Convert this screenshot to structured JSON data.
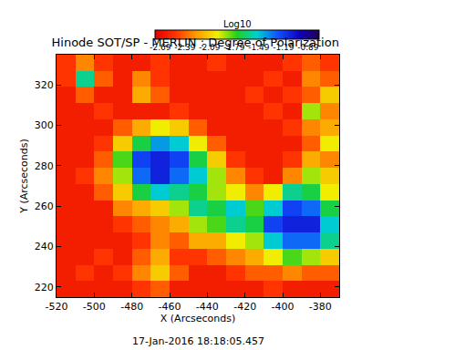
{
  "chart_data": {
    "type": "heatmap",
    "title": "Hinode SOT/SP - MERLIN : Degree of Polarization",
    "x_label": "X (Arcseconds)",
    "y_label": "Y (Arcseconds)",
    "annotations": [
      "17-Jan-2016 18:18:05.457"
    ],
    "xlim": [
      -520,
      -370
    ],
    "ylim": [
      215,
      335
    ],
    "xticks": [
      -520,
      -500,
      -480,
      -460,
      -440,
      -420,
      -400,
      -380
    ],
    "yticks": [
      220,
      240,
      260,
      280,
      300,
      320
    ],
    "x": [
      -515,
      -505,
      -495,
      -485,
      -475,
      -465,
      -455,
      -445,
      -435,
      -425,
      -415,
      -405,
      -395,
      -385,
      -375
    ],
    "y": [
      219,
      227,
      235,
      243,
      251,
      259,
      267,
      275,
      283,
      291,
      299,
      307,
      315,
      323,
      331
    ],
    "cells": [
      [
        -2.6,
        -2.6,
        -2.6,
        -2.6,
        -2.5,
        -2.4,
        -2.6,
        -2.6,
        -2.6,
        -2.6,
        -2.6,
        -2.5,
        -2.6,
        -2.6,
        -2.6
      ],
      [
        -2.6,
        -2.5,
        -2.6,
        -2.5,
        -2.3,
        -2.1,
        -2.4,
        -2.6,
        -2.6,
        -2.5,
        -2.4,
        -2.4,
        -2.3,
        -2.4,
        -2.4
      ],
      [
        -2.6,
        -2.6,
        -2.5,
        -2.6,
        -2.4,
        -2.2,
        -2.5,
        -2.5,
        -2.4,
        -2.3,
        -2.2,
        -2.0,
        -1.8,
        -1.9,
        -2.1
      ],
      [
        -2.6,
        -2.6,
        -2.6,
        -2.6,
        -2.5,
        -2.3,
        -2.4,
        -2.2,
        -2.2,
        -2.0,
        -1.9,
        -1.5,
        -1.3,
        -1.3,
        -1.6
      ],
      [
        -2.6,
        -2.6,
        -2.6,
        -2.5,
        -2.4,
        -2.3,
        -2.2,
        -1.9,
        -1.8,
        -1.6,
        -1.7,
        -1.2,
        -1.1,
        -1.1,
        -1.5
      ],
      [
        -2.6,
        -2.6,
        -2.6,
        -2.3,
        -2.2,
        -2.1,
        -1.9,
        -1.6,
        -1.7,
        -1.5,
        -1.8,
        -1.5,
        -1.2,
        -1.3,
        -1.7
      ],
      [
        -2.6,
        -2.6,
        -2.4,
        -2.1,
        -1.7,
        -1.5,
        -1.6,
        -1.7,
        -1.9,
        -2.0,
        -2.3,
        -2.0,
        -1.6,
        -1.7,
        -2.0
      ],
      [
        -2.6,
        -2.5,
        -2.3,
        -1.9,
        -1.3,
        -1.1,
        -1.3,
        -1.5,
        -1.9,
        -2.3,
        -2.5,
        -2.6,
        -2.3,
        -1.9,
        -2.1
      ],
      [
        -2.6,
        -2.6,
        -2.4,
        -1.8,
        -1.2,
        -1.1,
        -1.2,
        -1.7,
        -2.1,
        -2.5,
        -2.6,
        -2.6,
        -2.5,
        -2.2,
        -2.3
      ],
      [
        -2.6,
        -2.6,
        -2.5,
        -2.1,
        -1.7,
        -1.4,
        -1.5,
        -2.0,
        -2.4,
        -2.6,
        -2.6,
        -2.6,
        -2.6,
        -2.4,
        -2.0
      ],
      [
        -2.6,
        -2.6,
        -2.6,
        -2.4,
        -2.2,
        -2.0,
        -2.1,
        -2.4,
        -2.6,
        -2.6,
        -2.6,
        -2.6,
        -2.5,
        -2.3,
        -2.2
      ],
      [
        -2.6,
        -2.6,
        -2.5,
        -2.6,
        -2.6,
        -2.6,
        -2.5,
        -2.6,
        -2.6,
        -2.6,
        -2.6,
        -2.5,
        -2.6,
        -1.9,
        -2.3
      ],
      [
        -2.6,
        -2.4,
        -2.6,
        -2.6,
        -2.2,
        -2.4,
        -2.6,
        -2.6,
        -2.6,
        -2.6,
        -2.5,
        -2.6,
        -2.5,
        -2.4,
        -2.1
      ],
      [
        -2.5,
        -1.6,
        -2.4,
        -2.6,
        -2.3,
        -2.5,
        -2.6,
        -2.6,
        -2.6,
        -2.6,
        -2.6,
        -2.5,
        -2.6,
        -2.3,
        -2.4
      ],
      [
        -2.5,
        -2.3,
        -2.5,
        -2.6,
        -2.6,
        -2.5,
        -2.6,
        -2.6,
        -2.5,
        -2.6,
        -2.6,
        -2.6,
        -2.5,
        -2.4,
        -2.5
      ]
    ],
    "colorbar": {
      "title": "Log10",
      "range": [
        -2.75,
        -0.75
      ],
      "ticks": [
        -2.69,
        -2.39,
        -2.09,
        -1.79,
        -1.49,
        -1.19,
        -0.89
      ]
    }
  }
}
